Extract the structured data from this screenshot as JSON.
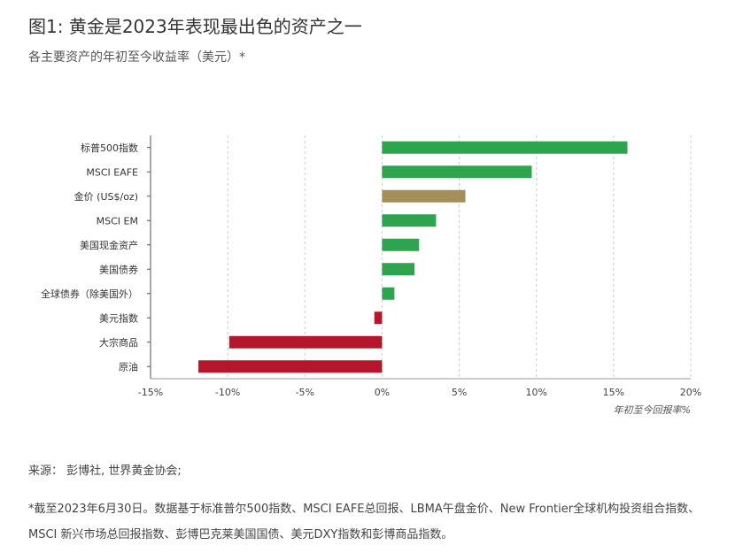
{
  "header": {
    "title": "图1: 黄金是2023年表现最出色的资产之一",
    "subtitle": "各主要资产的年初至今收益率（美元）*"
  },
  "chart_data": {
    "type": "bar",
    "orientation": "horizontal",
    "categories": [
      "标普500指数",
      "MSCI EAFE",
      "金价 (US$/oz)",
      "MSCI EM",
      "美国现金资产",
      "美国债券",
      "全球债券（除美国外）",
      "美元指数",
      "大宗商品",
      "原油"
    ],
    "values": [
      15.9,
      9.7,
      5.4,
      3.5,
      2.4,
      2.1,
      0.8,
      -0.5,
      -9.9,
      -11.9
    ],
    "bar_colors": [
      "#2ea44f",
      "#2ea44f",
      "#a48f5c",
      "#2ea44f",
      "#2ea44f",
      "#2ea44f",
      "#2ea44f",
      "#b5162b",
      "#b5162b",
      "#b5162b"
    ],
    "xlim": [
      -15,
      20
    ],
    "xticks": [
      -15,
      -10,
      -5,
      0,
      5,
      10,
      15,
      20
    ],
    "xtick_labels": [
      "-15%",
      "-10%",
      "-5%",
      "0%",
      "5%",
      "10%",
      "15%",
      "20%"
    ],
    "xlabel": "年初至今回报率%",
    "grid": "vertical-dashed",
    "colors": {
      "positive": "#2ea44f",
      "gold": "#a48f5c",
      "negative": "#b5162b"
    }
  },
  "footer": {
    "source": "来源：  彭博社, 世界黄金协会;",
    "note": "*截至2023年6月30日。数据基于标准普尔500指数、MSCI EAFE总回报、LBMA午盘金价、New Frontier全球机构投资组合指数、MSCI 新兴市场总回报指数、彭博巴克莱美国国债、美元DXY指数和彭博商品指数。"
  }
}
